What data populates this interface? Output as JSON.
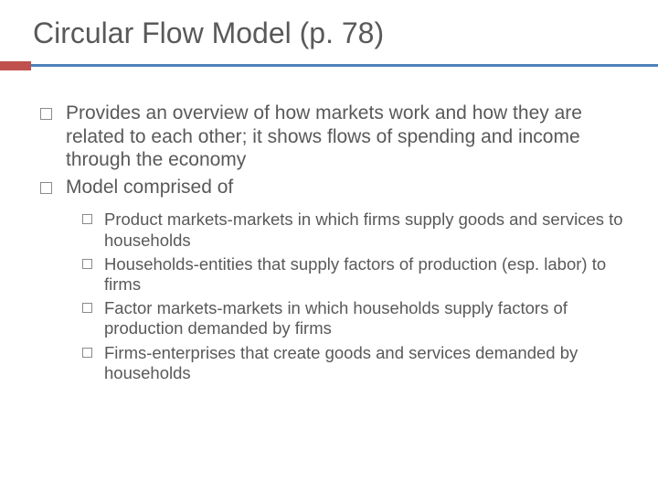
{
  "title": "Circular Flow Model (p. 78)",
  "colors": {
    "text": "#595959",
    "divider": "#4f81bd",
    "accent": "#c0504d",
    "background": "#ffffff",
    "bullet_border": "#8a8a8a"
  },
  "typography": {
    "title_fontsize": 32,
    "level1_fontsize": 21,
    "level2_fontsize": 18.5,
    "font_family": "Arial"
  },
  "bullets": {
    "level1": [
      "Provides an overview of how markets work and how they are related to each other; it shows flows of spending and income through the economy",
      "Model comprised of"
    ],
    "level2": [
      "Product markets-markets in which firms supply goods and services to households",
      "Households-entities that supply factors of production (esp. labor) to firms",
      "Factor markets-markets in which households supply factors of production demanded by firms",
      "Firms-enterprises that create goods and services demanded by households"
    ]
  }
}
